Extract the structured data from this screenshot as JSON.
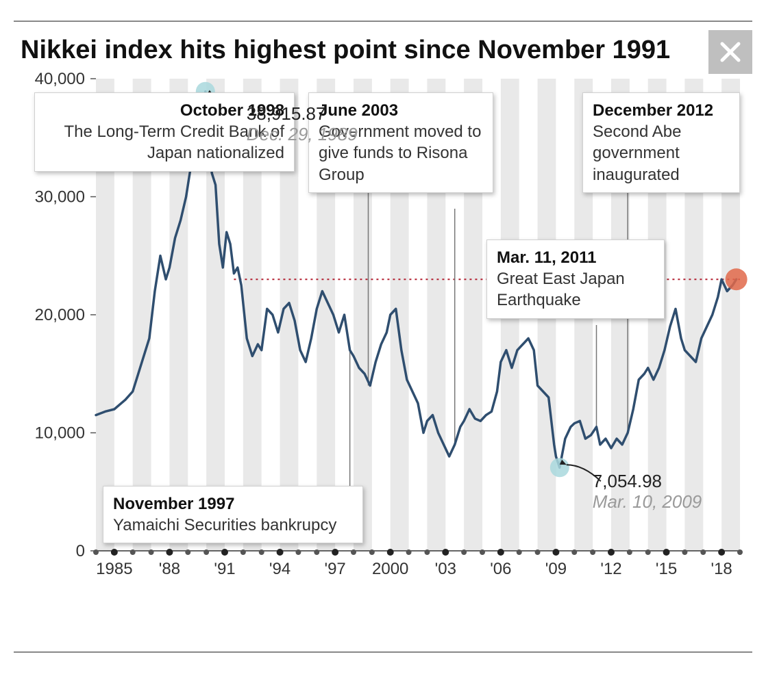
{
  "title": "Nikkei index hits highest point since November 1991",
  "chart": {
    "type": "line",
    "line_color": "#2f4e6f",
    "line_width": 3.5,
    "background_color": "#ffffff",
    "bar_fill": "#e9e9e9",
    "axis_color": "#555555",
    "tick_font_size": 24,
    "y": {
      "min": 0,
      "max": 40000,
      "ticks": [
        0,
        10000,
        20000,
        30000,
        40000
      ],
      "labels": [
        "0",
        "10,000",
        "20,000",
        "30,000",
        "40,000"
      ]
    },
    "x": {
      "min": 1984,
      "max": 2019,
      "ticks": [
        1985,
        1988,
        1991,
        1994,
        1997,
        2000,
        2003,
        2006,
        2009,
        2012,
        2015,
        2018
      ],
      "labels": [
        "1985",
        "'88",
        "'91",
        "'94",
        "'97",
        "2000",
        "'03",
        "'06",
        "'09",
        "'12",
        "'15",
        "'18"
      ]
    },
    "reference_line": {
      "y": 23000,
      "color": "#b21e2f",
      "dash": "3,5",
      "width": 2
    },
    "peak_marker": {
      "year": 1989.95,
      "value": 38915.87,
      "color": "#a9d8dd",
      "radius": 14
    },
    "trough_marker": {
      "year": 2009.2,
      "value": 7054.98,
      "color": "#a9d8dd",
      "radius": 14
    },
    "end_marker": {
      "year": 2018.8,
      "value": 23000,
      "color": "#e0694a",
      "radius": 16
    },
    "series": [
      [
        1984.0,
        11500
      ],
      [
        1984.5,
        11800
      ],
      [
        1985.0,
        12000
      ],
      [
        1985.3,
        12400
      ],
      [
        1985.6,
        12800
      ],
      [
        1986.0,
        13500
      ],
      [
        1986.3,
        15000
      ],
      [
        1986.6,
        16500
      ],
      [
        1986.9,
        18000
      ],
      [
        1987.2,
        22000
      ],
      [
        1987.5,
        25000
      ],
      [
        1987.8,
        23000
      ],
      [
        1988.0,
        24000
      ],
      [
        1988.3,
        26500
      ],
      [
        1988.6,
        28000
      ],
      [
        1988.9,
        30000
      ],
      [
        1989.2,
        33000
      ],
      [
        1989.5,
        34500
      ],
      [
        1989.8,
        37000
      ],
      [
        1989.95,
        38915
      ],
      [
        1990.1,
        36000
      ],
      [
        1990.3,
        32000
      ],
      [
        1990.5,
        31000
      ],
      [
        1990.7,
        26000
      ],
      [
        1990.9,
        24000
      ],
      [
        1991.1,
        27000
      ],
      [
        1991.3,
        26000
      ],
      [
        1991.5,
        23500
      ],
      [
        1991.7,
        24000
      ],
      [
        1991.9,
        22500
      ],
      [
        1992.2,
        18000
      ],
      [
        1992.5,
        16500
      ],
      [
        1992.8,
        17500
      ],
      [
        1993.0,
        17000
      ],
      [
        1993.3,
        20500
      ],
      [
        1993.6,
        20000
      ],
      [
        1993.9,
        18500
      ],
      [
        1994.2,
        20500
      ],
      [
        1994.5,
        21000
      ],
      [
        1994.8,
        19500
      ],
      [
        1995.1,
        17000
      ],
      [
        1995.4,
        16000
      ],
      [
        1995.7,
        18000
      ],
      [
        1996.0,
        20500
      ],
      [
        1996.3,
        22000
      ],
      [
        1996.6,
        21000
      ],
      [
        1996.9,
        20000
      ],
      [
        1997.2,
        18500
      ],
      [
        1997.5,
        20000
      ],
      [
        1997.8,
        17000
      ],
      [
        1998.0,
        16500
      ],
      [
        1998.3,
        15500
      ],
      [
        1998.6,
        15000
      ],
      [
        1998.9,
        14000
      ],
      [
        1999.2,
        16000
      ],
      [
        1999.5,
        17500
      ],
      [
        1999.8,
        18500
      ],
      [
        2000.0,
        20000
      ],
      [
        2000.3,
        20500
      ],
      [
        2000.6,
        17000
      ],
      [
        2000.9,
        14500
      ],
      [
        2001.2,
        13500
      ],
      [
        2001.5,
        12500
      ],
      [
        2001.8,
        10000
      ],
      [
        2002.0,
        11000
      ],
      [
        2002.3,
        11500
      ],
      [
        2002.6,
        10000
      ],
      [
        2002.9,
        9000
      ],
      [
        2003.2,
        8000
      ],
      [
        2003.5,
        9000
      ],
      [
        2003.8,
        10500
      ],
      [
        2004.0,
        11000
      ],
      [
        2004.3,
        12000
      ],
      [
        2004.6,
        11200
      ],
      [
        2004.9,
        11000
      ],
      [
        2005.2,
        11500
      ],
      [
        2005.5,
        11800
      ],
      [
        2005.8,
        13500
      ],
      [
        2006.0,
        16000
      ],
      [
        2006.3,
        17000
      ],
      [
        2006.6,
        15500
      ],
      [
        2006.9,
        17000
      ],
      [
        2007.2,
        17500
      ],
      [
        2007.5,
        18000
      ],
      [
        2007.8,
        17000
      ],
      [
        2008.0,
        14000
      ],
      [
        2008.3,
        13500
      ],
      [
        2008.6,
        13000
      ],
      [
        2008.9,
        9000
      ],
      [
        2009.0,
        8000
      ],
      [
        2009.2,
        7055
      ],
      [
        2009.5,
        9500
      ],
      [
        2009.8,
        10500
      ],
      [
        2010.0,
        10800
      ],
      [
        2010.3,
        11000
      ],
      [
        2010.6,
        9500
      ],
      [
        2010.9,
        9800
      ],
      [
        2011.2,
        10500
      ],
      [
        2011.4,
        9000
      ],
      [
        2011.7,
        9500
      ],
      [
        2012.0,
        8700
      ],
      [
        2012.3,
        9500
      ],
      [
        2012.6,
        9000
      ],
      [
        2012.9,
        10000
      ],
      [
        2013.2,
        12000
      ],
      [
        2013.5,
        14500
      ],
      [
        2013.8,
        15000
      ],
      [
        2014.0,
        15500
      ],
      [
        2014.3,
        14500
      ],
      [
        2014.6,
        15500
      ],
      [
        2014.9,
        17000
      ],
      [
        2015.2,
        19000
      ],
      [
        2015.5,
        20500
      ],
      [
        2015.8,
        18000
      ],
      [
        2016.0,
        17000
      ],
      [
        2016.3,
        16500
      ],
      [
        2016.6,
        16000
      ],
      [
        2016.9,
        18000
      ],
      [
        2017.2,
        19000
      ],
      [
        2017.5,
        20000
      ],
      [
        2017.8,
        21500
      ],
      [
        2018.0,
        23000
      ],
      [
        2018.3,
        22000
      ],
      [
        2018.6,
        22500
      ],
      [
        2018.8,
        23000
      ]
    ]
  },
  "peak_label": {
    "value": "38,915.87",
    "date": "Dec. 29, 1989"
  },
  "trough_label": {
    "value": "7,054.98",
    "date": "Mar. 10, 2009"
  },
  "annotations": [
    {
      "id": "a1",
      "title": "October 1998",
      "text": "The Long-Term Credit Bank of Japan nationalized",
      "pointer_year": 1998.8
    },
    {
      "id": "a2",
      "title": "June 2003",
      "text": "Government moved to give funds to Risona Group",
      "pointer_year": 2003.5
    },
    {
      "id": "a3",
      "title": "December 2012",
      "text": "Second Abe government inaugurated",
      "pointer_year": 2012.9
    },
    {
      "id": "a4",
      "title": "Mar. 11, 2011",
      "text": "Great East Japan Earthquake",
      "pointer_year": 2011.2
    },
    {
      "id": "a5",
      "title": "November 1997",
      "text": "Yamaichi Securities bankrupcy",
      "pointer_year": 1997.8
    }
  ]
}
